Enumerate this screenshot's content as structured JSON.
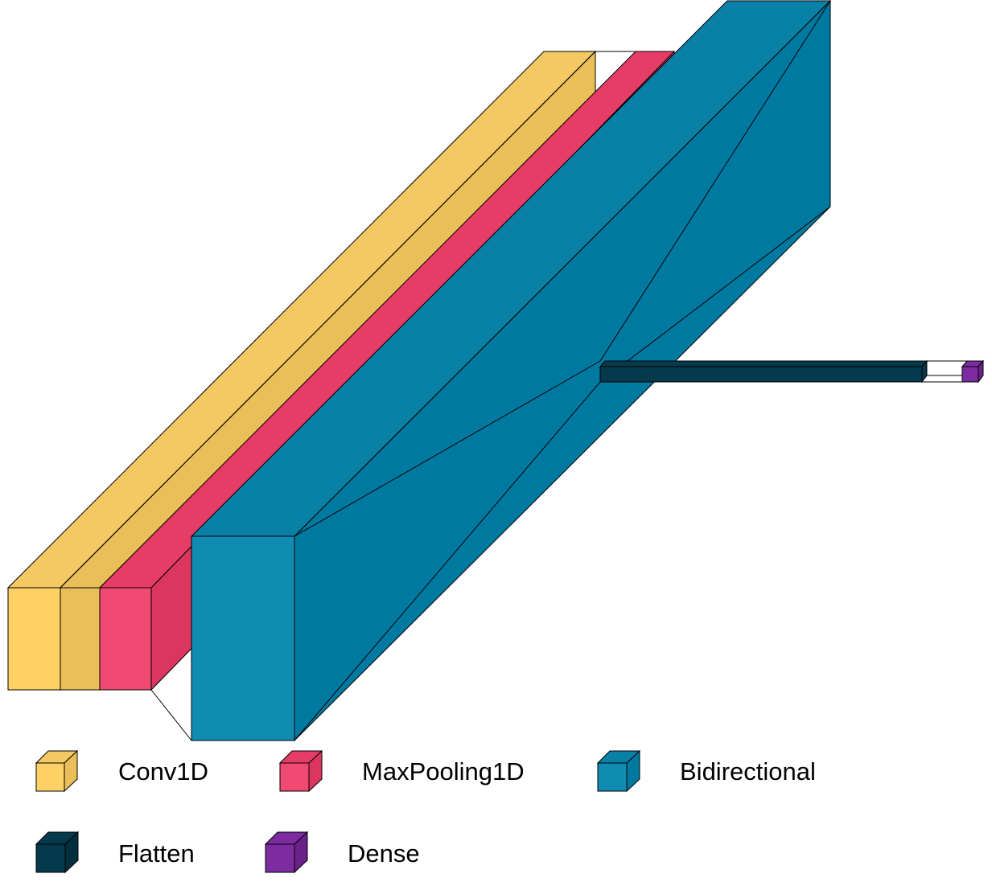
{
  "diagram": {
    "kind": "neural-network-layered-view",
    "layer_sequence": [
      "Conv1D",
      "Conv1D",
      "MaxPooling1D",
      "Bidirectional",
      "Flatten",
      "Dense"
    ]
  },
  "legend": [
    {
      "key": "conv1d",
      "label": "Conv1D",
      "color": "#FDD166"
    },
    {
      "key": "maxpooling1d",
      "label": "MaxPooling1D",
      "color": "#F04A72"
    },
    {
      "key": "bidirectional",
      "label": "Bidirectional",
      "color": "#108BB1"
    },
    {
      "key": "flatten",
      "label": "Flatten",
      "color": "#053A4C"
    },
    {
      "key": "dense",
      "label": "Dense",
      "color": "#7C2BA0"
    }
  ],
  "colors": {
    "conv1d_front": "#FDD166",
    "conv1d_side": "#EABF57",
    "conv1d_top": "#F4C862",
    "maxpool_front": "#F04A72",
    "maxpool_side": "#DB3660",
    "maxpool_top": "#E63D67",
    "bidir_front": "#108BB1",
    "bidir_side": "#0079A0",
    "bidir_top": "#0981A7",
    "flatten": "#053A4C",
    "dense": "#7C2BA0"
  }
}
